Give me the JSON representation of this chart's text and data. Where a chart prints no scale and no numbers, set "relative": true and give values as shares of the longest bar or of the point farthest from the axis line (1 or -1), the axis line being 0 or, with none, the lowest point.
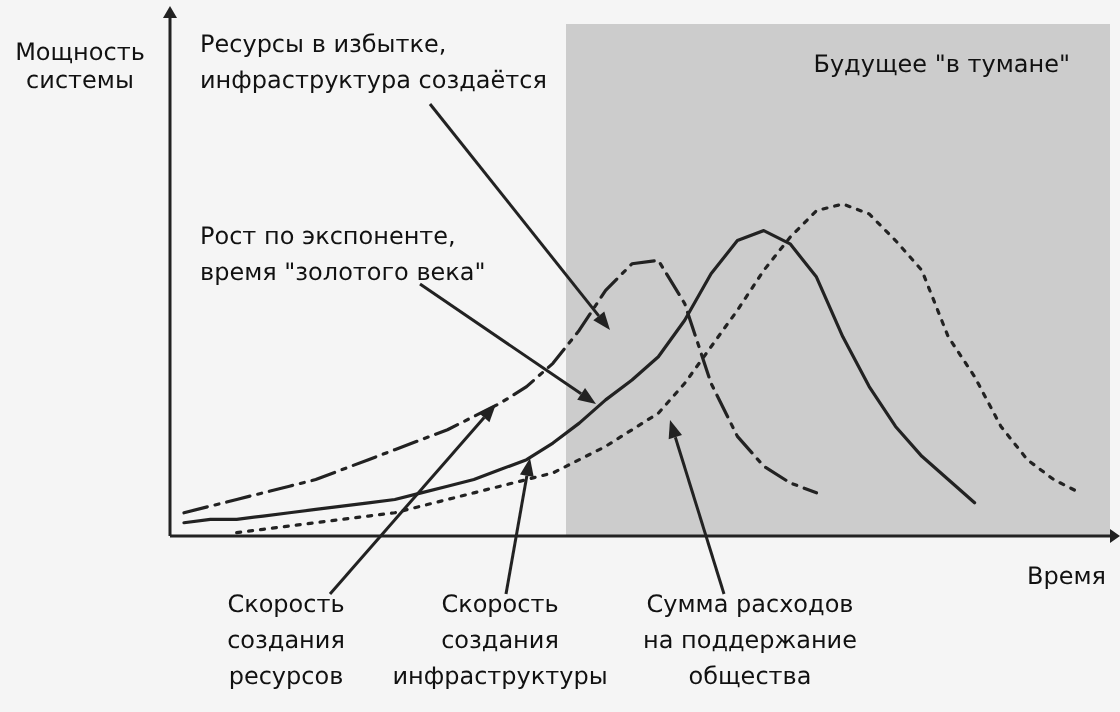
{
  "chart_data": {
    "type": "line",
    "relative": true,
    "xlabel": "Время",
    "ylabel": "Мощность\nсистемы",
    "categories": [
      null,
      null,
      null,
      null,
      null,
      null,
      null,
      null,
      null,
      null,
      null,
      null,
      null,
      null,
      null,
      null,
      null,
      null,
      null,
      null,
      null,
      null,
      null,
      null,
      null,
      null,
      null,
      null,
      null,
      null,
      null,
      null,
      null,
      null,
      null
    ],
    "series": [
      {
        "color": "#222222",
        "line_style": "dashed",
        "values": [
          0.07,
          0.09,
          0.11,
          0.13,
          0.15,
          0.17,
          0.2,
          0.23,
          0.26,
          0.29,
          0.32,
          0.36,
          0.4,
          0.45,
          0.52,
          0.62,
          0.74,
          0.82,
          0.83,
          0.7,
          0.46,
          0.3,
          0.21,
          0.16,
          0.13,
          null,
          null,
          null,
          null,
          null,
          null,
          null,
          null,
          null,
          null
        ]
      },
      {
        "color": "#222222",
        "line_style": "solid",
        "values": [
          0.04,
          0.05,
          0.05,
          0.06,
          0.07,
          0.08,
          0.09,
          0.1,
          0.11,
          0.13,
          0.15,
          0.17,
          0.2,
          0.23,
          0.28,
          0.34,
          0.41,
          0.47,
          0.54,
          0.65,
          0.79,
          0.89,
          0.92,
          0.88,
          0.78,
          0.6,
          0.45,
          0.33,
          0.24,
          0.17,
          0.1,
          null,
          null,
          null,
          null
        ]
      },
      {
        "color": "#222222",
        "line_style": "dotted",
        "values": [
          null,
          null,
          0.01,
          0.02,
          0.03,
          0.04,
          0.05,
          0.06,
          0.07,
          0.09,
          0.11,
          0.13,
          0.15,
          0.17,
          0.19,
          0.23,
          0.27,
          0.32,
          0.37,
          0.46,
          0.57,
          0.68,
          0.8,
          0.9,
          0.98,
          1,
          0.97,
          0.89,
          0.8,
          0.6,
          0.48,
          0.33,
          0.23,
          0.17,
          0.13
        ]
      }
    ],
    "annotations": [
      "Будущее \"в тумане\"",
      "Ресурсы в избытке,\nинфраструктура создаётся",
      "Рост по экспоненте,\nвремя \"золотого века\"",
      "Скорость\nсоздания\nресурсов",
      "Скорость\nсоздания\nинфраструктуры",
      "Сумма расходов\nна поддержание\nобщества"
    ]
  }
}
